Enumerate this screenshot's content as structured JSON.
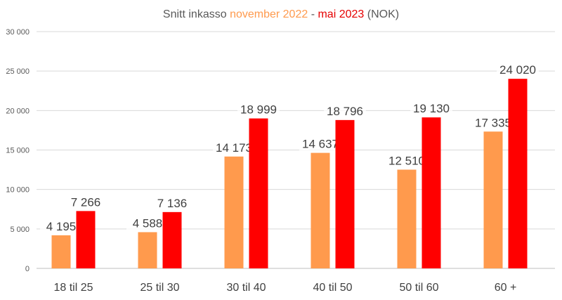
{
  "chart_data": {
    "type": "bar",
    "title": {
      "prefix": "Snitt inkasso ",
      "part1": "november 2022",
      "separator": " - ",
      "part2": "mai 2023",
      "suffix": " (NOK)"
    },
    "categories": [
      "18 til 25",
      "25 til 30",
      "30 til 40",
      "40 til 50",
      "50 til 60",
      "60 +"
    ],
    "series": [
      {
        "color": "#ff9a4d",
        "values": [
          4195,
          4588,
          14173,
          14637,
          12510,
          17335
        ],
        "labels": [
          "4 195",
          "4 588",
          "14 173",
          "14 637",
          "12 510",
          "17 335"
        ]
      },
      {
        "color": "#ff0000",
        "values": [
          7266,
          7136,
          18999,
          18796,
          19130,
          24020
        ],
        "labels": [
          "7 266",
          "7 136",
          "18 999",
          "18 796",
          "19 130",
          "24 020"
        ]
      }
    ],
    "ylim": [
      0,
      30000
    ],
    "yticks": [
      0,
      5000,
      10000,
      15000,
      20000,
      25000,
      30000
    ],
    "ytick_labels": [
      "0",
      "5 000",
      "10 000",
      "15 000",
      "20 000",
      "25 000",
      "30 000"
    ],
    "grid": true,
    "legend": "none",
    "colors": {
      "axis_text": "#595959",
      "gridline": "#d9d9d9",
      "title_accent_1": "#ff9a4d",
      "title_accent_2": "#e60000"
    }
  }
}
